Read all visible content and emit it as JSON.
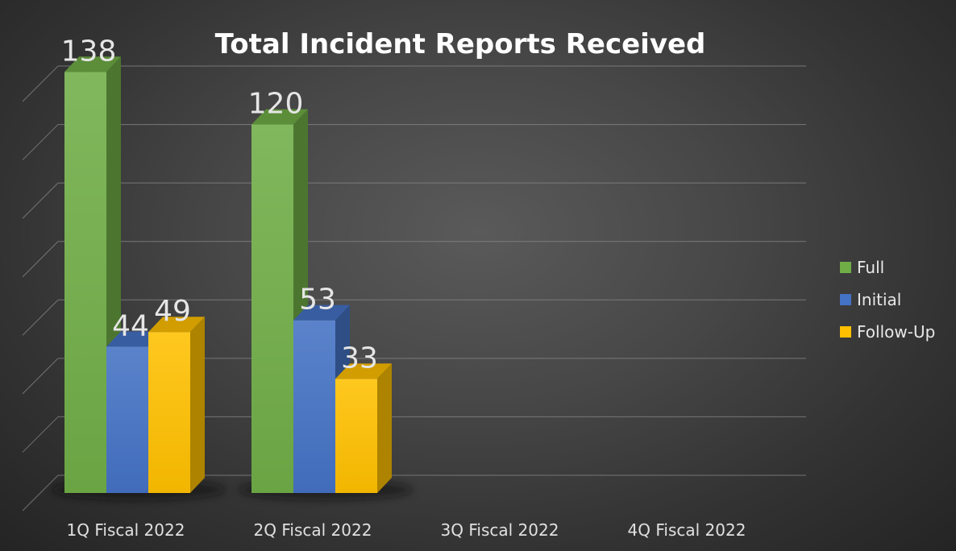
{
  "chart_data": {
    "type": "bar",
    "title": "Total Incident Reports Received",
    "categories": [
      "1Q Fiscal 2022",
      "2Q Fiscal 2022",
      "3Q Fiscal 2022",
      "4Q Fiscal 2022"
    ],
    "series": [
      {
        "name": "Full",
        "values": [
          138,
          120,
          null,
          null
        ],
        "color": "#70ad47"
      },
      {
        "name": "Initial",
        "values": [
          44,
          53,
          null,
          null
        ],
        "color": "#4472c4"
      },
      {
        "name": "Follow-Up",
        "values": [
          49,
          33,
          null,
          null
        ],
        "color": "#ffc000"
      }
    ],
    "ylim": [
      0,
      140
    ],
    "grid": true,
    "show_y_tick_labels": false,
    "data_labels": true,
    "legend_position": "right",
    "style": "3d-clustered-column"
  }
}
